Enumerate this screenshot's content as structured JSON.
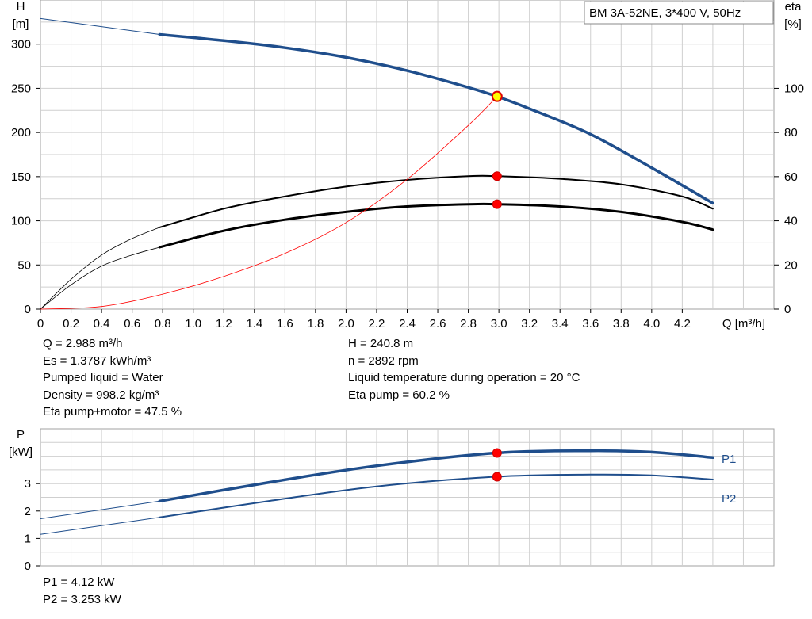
{
  "chart_data": [
    {
      "type": "line",
      "title": "BM 3A-52NE, 3*400 V, 50Hz",
      "xlabel": "Q [m³/h]",
      "ylabel_left": [
        "H",
        "[m]"
      ],
      "ylabel_right": [
        "eta",
        "[%]"
      ],
      "xlim": [
        0,
        4.8
      ],
      "xticks": [
        0,
        0.2,
        0.4,
        0.6,
        0.8,
        1.0,
        1.2,
        1.4,
        1.6,
        1.8,
        2.0,
        2.2,
        2.4,
        2.6,
        2.8,
        3.0,
        3.2,
        3.4,
        3.6,
        3.8,
        4.0,
        4.2
      ],
      "xtick_labels": [
        "0",
        "0.2",
        "0.4",
        "0.6",
        "0.8",
        "1.0",
        "1.2",
        "1.4",
        "1.6",
        "1.8",
        "2.0",
        "2.2",
        "2.4",
        "2.6",
        "2.8",
        "3.0",
        "3.2",
        "3.4",
        "3.6",
        "3.8",
        "4.0",
        "4.2"
      ],
      "ylim_left": [
        0,
        350
      ],
      "yticks_left": [
        "0",
        "50",
        "100",
        "150",
        "200",
        "250",
        "300"
      ],
      "ylim_right": [
        0,
        140
      ],
      "yticks_right": [
        "0",
        "20",
        "40",
        "60",
        "80",
        "100"
      ],
      "grid": true,
      "series": [
        {
          "axis": "left",
          "color": "#1f4e8c",
          "x": [
            0,
            0.78,
            1.2,
            1.6,
            2.0,
            2.4,
            2.8,
            2.988,
            3.2,
            3.6,
            4.0,
            4.4
          ],
          "y": [
            329,
            311,
            304,
            296,
            285,
            270,
            251,
            240.8,
            227,
            198,
            160,
            120
          ]
        },
        {
          "axis": "right",
          "color": "#000000",
          "x": [
            0,
            0.2,
            0.4,
            0.6,
            0.78,
            1.2,
            1.6,
            2.0,
            2.4,
            2.8,
            3.0,
            3.4,
            3.8,
            4.2,
            4.4
          ],
          "y": [
            0,
            13.5,
            24.5,
            32,
            37,
            45.5,
            51,
            55.5,
            58.5,
            60.2,
            60.2,
            59,
            56.5,
            51,
            45.5
          ]
        },
        {
          "axis": "right",
          "color": "#000000",
          "x": [
            0,
            0.2,
            0.4,
            0.6,
            0.78,
            1.2,
            1.6,
            2.0,
            2.4,
            2.8,
            3.0,
            3.4,
            3.8,
            4.2,
            4.4
          ],
          "y": [
            0,
            11,
            19.5,
            24.5,
            28,
            35.5,
            40.5,
            44,
            46.5,
            47.5,
            47.5,
            46.5,
            44,
            39.5,
            36
          ]
        },
        {
          "axis": "left",
          "color": "#ff0000",
          "x": [
            0,
            0.4,
            0.8,
            1.2,
            1.6,
            2.0,
            2.4,
            2.8,
            2.988
          ],
          "y": [
            0,
            3,
            17,
            37,
            63,
            98,
            147,
            208,
            240.8
          ]
        }
      ],
      "markers": [
        {
          "axis": "left",
          "x": 2.988,
          "y": 240.8,
          "style": "duty"
        },
        {
          "axis": "right",
          "x": 2.988,
          "y": 60.2,
          "style": "point"
        },
        {
          "axis": "right",
          "x": 2.988,
          "y": 47.5,
          "style": "point"
        }
      ]
    },
    {
      "type": "line",
      "xlim": [
        0,
        4.8
      ],
      "ylabel": [
        "P",
        "[kW]"
      ],
      "ylim": [
        0,
        5
      ],
      "yticks": [
        "0",
        "1",
        "2",
        "3"
      ],
      "grid": true,
      "series": [
        {
          "name": "P1",
          "color": "#1f4e8c",
          "x": [
            0,
            0.78,
            1.5,
            2.2,
            2.988,
            3.6,
            4.0,
            4.4
          ],
          "y": [
            1.72,
            2.36,
            3.05,
            3.65,
            4.12,
            4.2,
            4.15,
            3.95
          ]
        },
        {
          "name": "P2",
          "color": "#1f4e8c",
          "x": [
            0,
            0.78,
            1.5,
            2.2,
            2.988,
            3.6,
            4.0,
            4.4
          ],
          "y": [
            1.15,
            1.77,
            2.37,
            2.9,
            3.253,
            3.33,
            3.3,
            3.15
          ]
        }
      ],
      "markers": [
        {
          "x": 2.988,
          "y": 4.12,
          "style": "point"
        },
        {
          "x": 2.988,
          "y": 3.253,
          "style": "point"
        }
      ]
    }
  ],
  "info": {
    "q": "Q = 2.988 m³/h",
    "es": "Es = 1.3787 kWh/m³",
    "liquid": "Pumped liquid = Water",
    "density": "Density = 998.2 kg/m³",
    "eta_pm": "Eta pump+motor = 47.5 %",
    "h": "H = 240.8 m",
    "n": "n = 2892 rpm",
    "temp": "Liquid temperature during operation = 20 °C",
    "eta_p": "Eta pump = 60.2 %",
    "p1": "P1 = 4.12 kW",
    "p2": "P2 = 3.253 kW"
  }
}
